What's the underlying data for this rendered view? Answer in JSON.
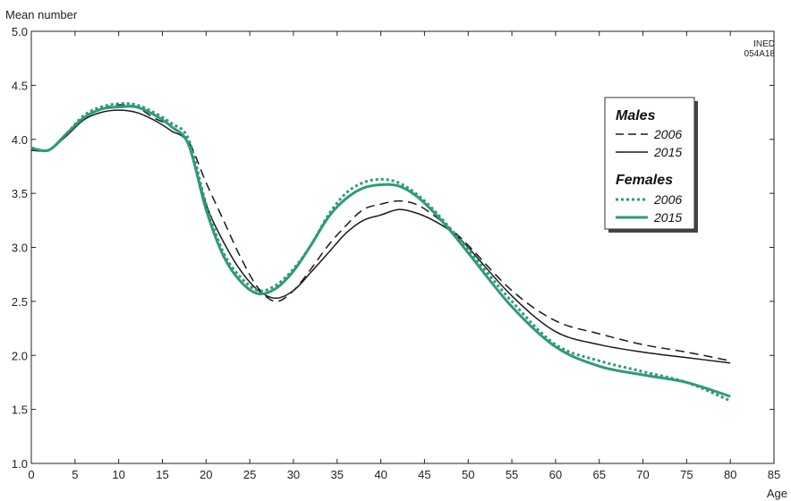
{
  "chart_data": {
    "type": "line",
    "ylabel": "Mean number",
    "xlabel": "Age",
    "credit": [
      "INED",
      "054A18"
    ],
    "xlim": [
      0,
      85
    ],
    "ylim": [
      1.0,
      5.0
    ],
    "x_ticks": [
      0,
      5,
      10,
      15,
      20,
      25,
      30,
      35,
      40,
      45,
      50,
      55,
      60,
      65,
      70,
      75,
      80,
      85
    ],
    "y_ticks": [
      "1.0",
      "1.5",
      "2.0",
      "2.5",
      "3.0",
      "3.5",
      "4.0",
      "4.5",
      "5.0"
    ],
    "x": [
      0,
      2,
      4,
      6,
      8,
      10,
      12,
      14,
      16,
      18,
      20,
      22,
      24,
      26,
      28,
      30,
      32,
      34,
      36,
      38,
      40,
      42,
      44,
      46,
      48,
      50,
      55,
      60,
      65,
      70,
      75,
      80
    ],
    "legend": {
      "groups": [
        {
          "heading": "Males",
          "items": [
            {
              "label": "2006",
              "series": 0
            },
            {
              "label": "2015",
              "series": 1
            }
          ]
        },
        {
          "heading": "Females",
          "items": [
            {
              "label": "2006",
              "series": 2
            },
            {
              "label": "2015",
              "series": 3
            }
          ]
        }
      ]
    },
    "colors": {
      "males": "#1a1a1a",
      "females": "#2e9a7c"
    },
    "series": [
      {
        "group": "Males",
        "year": "2006",
        "style": "dashed",
        "color": "#1a1a1a",
        "values": [
          3.9,
          3.9,
          4.05,
          4.2,
          4.28,
          4.32,
          4.3,
          4.2,
          4.12,
          3.98,
          3.6,
          3.25,
          2.9,
          2.62,
          2.5,
          2.6,
          2.8,
          3.02,
          3.2,
          3.35,
          3.4,
          3.43,
          3.4,
          3.3,
          3.17,
          3.02,
          2.6,
          2.32,
          2.2,
          2.1,
          2.03,
          1.95
        ]
      },
      {
        "group": "Males",
        "year": "2015",
        "style": "solid",
        "color": "#1a1a1a",
        "values": [
          3.9,
          3.9,
          4.03,
          4.18,
          4.25,
          4.27,
          4.25,
          4.18,
          4.08,
          3.95,
          3.4,
          3.05,
          2.78,
          2.6,
          2.53,
          2.6,
          2.77,
          2.95,
          3.13,
          3.25,
          3.3,
          3.35,
          3.32,
          3.25,
          3.15,
          3.0,
          2.55,
          2.22,
          2.1,
          2.03,
          1.98,
          1.93
        ]
      },
      {
        "group": "Females",
        "year": "2006",
        "style": "dotted",
        "color": "#2e9a7c",
        "values": [
          3.92,
          3.9,
          4.05,
          4.22,
          4.3,
          4.33,
          4.32,
          4.25,
          4.15,
          4.0,
          3.4,
          2.95,
          2.72,
          2.6,
          2.65,
          2.8,
          3.02,
          3.3,
          3.5,
          3.6,
          3.63,
          3.6,
          3.5,
          3.35,
          3.17,
          2.98,
          2.5,
          2.1,
          1.95,
          1.85,
          1.75,
          1.58
        ]
      },
      {
        "group": "Females",
        "year": "2015",
        "style": "solid",
        "color": "#2e9a7c",
        "values": [
          3.92,
          3.9,
          4.05,
          4.2,
          4.28,
          4.3,
          4.3,
          4.23,
          4.12,
          3.95,
          3.35,
          2.92,
          2.68,
          2.57,
          2.62,
          2.78,
          3.02,
          3.28,
          3.45,
          3.55,
          3.58,
          3.57,
          3.48,
          3.33,
          3.15,
          2.95,
          2.45,
          2.08,
          1.9,
          1.82,
          1.75,
          1.62
        ]
      }
    ]
  }
}
